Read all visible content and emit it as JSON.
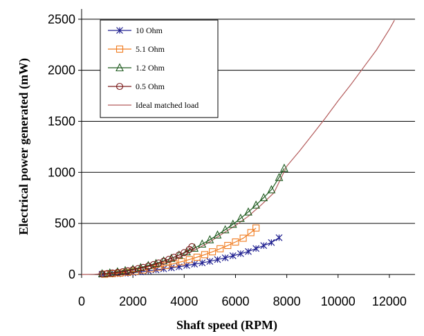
{
  "chart_data": {
    "type": "line",
    "title": "",
    "xlabel": "Shaft speed (RPM)",
    "ylabel": "Electrical power generated (mW)",
    "xlim": [
      0,
      13000
    ],
    "ylim": [
      0,
      2600
    ],
    "xticks": [
      0,
      2000,
      4000,
      6000,
      8000,
      10000,
      12000
    ],
    "yticks": [
      0,
      500,
      1000,
      1500,
      2000,
      2500
    ],
    "grid": "horizontal",
    "legend_position": "top-left",
    "series": [
      {
        "name": "10 Ohm",
        "color": "#1f1f8f",
        "marker": "asterisk",
        "x": [
          800,
          1100,
          1400,
          1700,
          2000,
          2300,
          2600,
          2900,
          3200,
          3500,
          3800,
          4100,
          4400,
          4700,
          5000,
          5300,
          5600,
          5900,
          6200,
          6500,
          6800,
          7100,
          7400,
          7700
        ],
        "y": [
          2,
          4,
          7,
          11,
          17,
          25,
          35,
          45,
          55,
          65,
          75,
          88,
          101,
          114,
          128,
          146,
          163,
          183,
          204,
          225,
          254,
          283,
          313,
          360
        ]
      },
      {
        "name": "5.1 Ohm",
        "color": "#f07b1e",
        "marker": "square",
        "x": [
          900,
          1200,
          1500,
          1800,
          2100,
          2400,
          2700,
          3000,
          3300,
          3600,
          3900,
          4200,
          4500,
          4800,
          5100,
          5400,
          5700,
          6000,
          6300,
          6600,
          6800
        ],
        "y": [
          3,
          8,
          14,
          22,
          32,
          44,
          57,
          72,
          88,
          106,
          125,
          146,
          169,
          194,
          222,
          252,
          284,
          318,
          355,
          410,
          455
        ]
      },
      {
        "name": "1.2 Ohm",
        "color": "#1e5a1e",
        "marker": "triangle",
        "x": [
          800,
          1100,
          1400,
          1700,
          2000,
          2300,
          2600,
          2900,
          3200,
          3500,
          3800,
          4100,
          4400,
          4700,
          5000,
          5300,
          5600,
          5900,
          6200,
          6500,
          6800,
          7100,
          7400,
          7700,
          7900
        ],
        "y": [
          8,
          15,
          26,
          38,
          52,
          68,
          88,
          108,
          133,
          158,
          190,
          222,
          258,
          298,
          340,
          387,
          438,
          492,
          550,
          612,
          680,
          752,
          830,
          950,
          1040
        ]
      },
      {
        "name": "0.5 Ohm",
        "color": "#7a1a1a",
        "marker": "circle",
        "x": [
          800,
          1000,
          1200,
          1400,
          1600,
          1800,
          2000,
          2200,
          2400,
          2600,
          2800,
          3000,
          3200,
          3400,
          3600,
          3800,
          4000,
          4200,
          4300
        ],
        "y": [
          5,
          9,
          14,
          20,
          27,
          36,
          46,
          57,
          69,
          82,
          96,
          112,
          129,
          148,
          168,
          190,
          214,
          245,
          272
        ]
      },
      {
        "name": "Ideal matched load",
        "color": "#b35a5a",
        "marker": "none",
        "x": [
          0,
          500,
          1000,
          1500,
          2000,
          2500,
          3000,
          3500,
          4000,
          4500,
          5000,
          5500,
          6000,
          6500,
          7000,
          7500,
          8000,
          8500,
          9000,
          9500,
          10000,
          10500,
          11000,
          11500,
          12000,
          12200
        ],
        "y": [
          0,
          2,
          10,
          22,
          45,
          70,
          100,
          140,
          190,
          250,
          320,
          400,
          480,
          570,
          680,
          800,
          1060,
          1210,
          1370,
          1530,
          1700,
          1860,
          2030,
          2200,
          2400,
          2490
        ]
      }
    ]
  }
}
